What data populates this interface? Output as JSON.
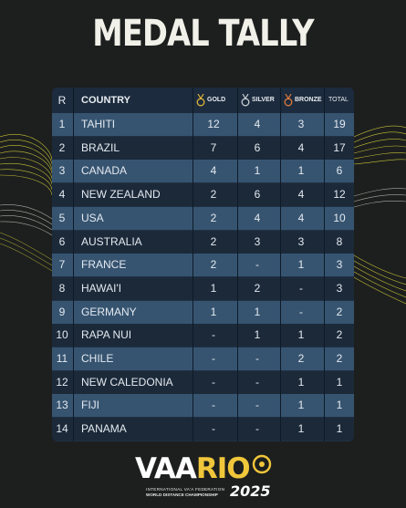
{
  "title": "MEDAL TALLY",
  "table": {
    "headers": {
      "rank": "R",
      "country": "COUNTRY",
      "gold": "GOLD",
      "silver": "SILVER",
      "bronze": "BRONZE",
      "total": "TOTAL"
    },
    "rows": [
      {
        "rank": "1",
        "country": "TAHITI",
        "gold": "12",
        "silver": "4",
        "bronze": "3",
        "total": "19"
      },
      {
        "rank": "2",
        "country": "BRAZIL",
        "gold": "7",
        "silver": "6",
        "bronze": "4",
        "total": "17"
      },
      {
        "rank": "3",
        "country": "CANADA",
        "gold": "4",
        "silver": "1",
        "bronze": "1",
        "total": "6"
      },
      {
        "rank": "4",
        "country": "NEW ZEALAND",
        "gold": "2",
        "silver": "6",
        "bronze": "4",
        "total": "12"
      },
      {
        "rank": "5",
        "country": "USA",
        "gold": "2",
        "silver": "4",
        "bronze": "4",
        "total": "10"
      },
      {
        "rank": "6",
        "country": "AUSTRALIA",
        "gold": "2",
        "silver": "3",
        "bronze": "3",
        "total": "8"
      },
      {
        "rank": "7",
        "country": "FRANCE",
        "gold": "2",
        "silver": "-",
        "bronze": "1",
        "total": "3"
      },
      {
        "rank": "8",
        "country": "HAWAI'I",
        "gold": "1",
        "silver": "2",
        "bronze": "-",
        "total": "3"
      },
      {
        "rank": "9",
        "country": "GERMANY",
        "gold": "1",
        "silver": "1",
        "bronze": "-",
        "total": "2"
      },
      {
        "rank": "10",
        "country": "RAPA NUI",
        "gold": "-",
        "silver": "1",
        "bronze": "1",
        "total": "2"
      },
      {
        "rank": "11",
        "country": "CHILE",
        "gold": "-",
        "silver": "-",
        "bronze": "2",
        "total": "2"
      },
      {
        "rank": "12",
        "country": "NEW CALEDONIA",
        "gold": "-",
        "silver": "-",
        "bronze": "1",
        "total": "1"
      },
      {
        "rank": "13",
        "country": "FIJI",
        "gold": "-",
        "silver": "-",
        "bronze": "1",
        "total": "1"
      },
      {
        "rank": "14",
        "country": "PANAMA",
        "gold": "-",
        "silver": "-",
        "bronze": "1",
        "total": "1"
      }
    ]
  },
  "logo": {
    "word_main": "VAA",
    "word_accent": "RIO",
    "line1": "INTERNATIONAL VA'A FEDERATION",
    "line2": "WORLD DISTANCE CHAMPIONSHIP",
    "year": "2025"
  },
  "icons": {
    "gold": "gold-medal-icon",
    "silver": "silver-medal-icon",
    "bronze": "bronze-medal-icon"
  },
  "colors": {
    "background": "#1d1f1e",
    "panel": "#213145",
    "row_light": "#365470",
    "row_dark": "#1b2939",
    "gold": "#e0b43a",
    "silver": "#c9ced4",
    "bronze": "#e07a3a",
    "accent_yellow": "#e8e04a"
  }
}
